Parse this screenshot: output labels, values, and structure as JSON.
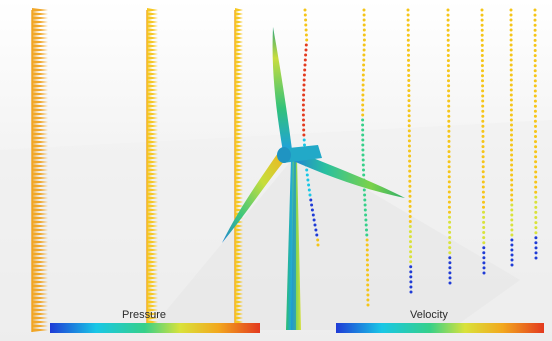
{
  "scene": {
    "subject": "wind-turbine-cfd-visualization",
    "colorbars": [
      {
        "id": "pressure",
        "label": "Pressure"
      },
      {
        "id": "velocity",
        "label": "Velocity"
      }
    ],
    "colormap": [
      "#1f3bd6",
      "#19c7e6",
      "#35d08a",
      "#d9e23a",
      "#f2a81e",
      "#e33a1f"
    ],
    "profile_color_yellow": "#f5c518",
    "profile_color_orange": "#f0a21d"
  }
}
